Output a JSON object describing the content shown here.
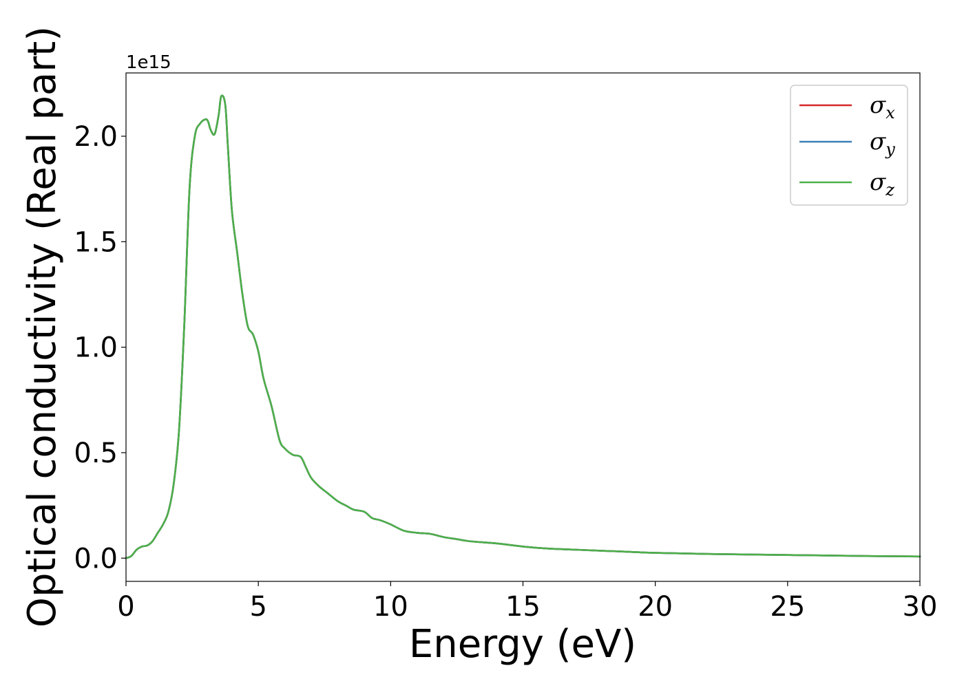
{
  "chart_data": {
    "type": "line",
    "xlabel": "Energy (eV)",
    "ylabel": "Optical conductivity (Real part)",
    "y_offset_text": "1e15",
    "y_scale": 1000000000000000.0,
    "xlim": [
      0,
      30
    ],
    "ylim": [
      -0.11,
      2.3
    ],
    "x_ticks": [
      0,
      5,
      10,
      15,
      20,
      25,
      30
    ],
    "x_tick_labels": [
      "0",
      "5",
      "10",
      "15",
      "20",
      "25",
      "30"
    ],
    "y_ticks": [
      0.0,
      0.5,
      1.0,
      1.5,
      2.0
    ],
    "y_tick_labels": [
      "0.0",
      "0.5",
      "1.0",
      "1.5",
      "2.0"
    ],
    "grid": false,
    "legend_position": "upper-right",
    "series": [
      {
        "name": "σx",
        "symbol": "σ",
        "subscript": "x",
        "color": "#d62728",
        "x": [
          0,
          0.2,
          0.4,
          0.6,
          0.8,
          1.0,
          1.2,
          1.4,
          1.6,
          1.8,
          2.0,
          2.2,
          2.4,
          2.6,
          2.8,
          3.0,
          3.1,
          3.2,
          3.35,
          3.5,
          3.6,
          3.75,
          3.85,
          4.0,
          4.2,
          4.4,
          4.6,
          4.8,
          5.0,
          5.2,
          5.5,
          5.8,
          6.0,
          6.3,
          6.6,
          6.8,
          7.0,
          7.3,
          7.6,
          8.0,
          8.3,
          8.6,
          9.0,
          9.3,
          9.6,
          10.0,
          10.5,
          11.0,
          11.5,
          12.0,
          12.5,
          13.0,
          14.0,
          15.0,
          16.0,
          17.0,
          18.0,
          19.0,
          20.0,
          22.0,
          25.0,
          28.0,
          30.0
        ],
        "y": [
          0.0,
          0.01,
          0.04,
          0.055,
          0.06,
          0.08,
          0.12,
          0.16,
          0.22,
          0.35,
          0.6,
          1.1,
          1.75,
          2.0,
          2.06,
          2.08,
          2.07,
          2.03,
          2.01,
          2.1,
          2.19,
          2.15,
          1.95,
          1.65,
          1.45,
          1.25,
          1.1,
          1.06,
          0.98,
          0.85,
          0.72,
          0.56,
          0.52,
          0.49,
          0.48,
          0.43,
          0.38,
          0.34,
          0.31,
          0.27,
          0.25,
          0.23,
          0.22,
          0.19,
          0.18,
          0.16,
          0.13,
          0.12,
          0.115,
          0.1,
          0.09,
          0.08,
          0.07,
          0.055,
          0.045,
          0.04,
          0.035,
          0.03,
          0.025,
          0.02,
          0.015,
          0.01,
          0.008
        ]
      },
      {
        "name": "σy",
        "symbol": "σ",
        "subscript": "y",
        "color": "#3a7fb8",
        "x": [
          0,
          0.2,
          0.4,
          0.6,
          0.8,
          1.0,
          1.2,
          1.4,
          1.6,
          1.8,
          2.0,
          2.2,
          2.4,
          2.6,
          2.8,
          3.0,
          3.1,
          3.2,
          3.35,
          3.5,
          3.6,
          3.75,
          3.85,
          4.0,
          4.2,
          4.4,
          4.6,
          4.8,
          5.0,
          5.2,
          5.5,
          5.8,
          6.0,
          6.3,
          6.6,
          6.8,
          7.0,
          7.3,
          7.6,
          8.0,
          8.3,
          8.6,
          9.0,
          9.3,
          9.6,
          10.0,
          10.5,
          11.0,
          11.5,
          12.0,
          12.5,
          13.0,
          14.0,
          15.0,
          16.0,
          17.0,
          18.0,
          19.0,
          20.0,
          22.0,
          25.0,
          28.0,
          30.0
        ],
        "y": [
          0.0,
          0.01,
          0.04,
          0.055,
          0.06,
          0.08,
          0.12,
          0.16,
          0.22,
          0.35,
          0.6,
          1.1,
          1.75,
          2.0,
          2.06,
          2.08,
          2.07,
          2.03,
          2.01,
          2.1,
          2.19,
          2.15,
          1.95,
          1.65,
          1.45,
          1.25,
          1.1,
          1.06,
          0.98,
          0.85,
          0.72,
          0.56,
          0.52,
          0.49,
          0.48,
          0.43,
          0.38,
          0.34,
          0.31,
          0.27,
          0.25,
          0.23,
          0.22,
          0.19,
          0.18,
          0.16,
          0.13,
          0.12,
          0.115,
          0.1,
          0.09,
          0.08,
          0.07,
          0.055,
          0.045,
          0.04,
          0.035,
          0.03,
          0.025,
          0.02,
          0.015,
          0.01,
          0.008
        ]
      },
      {
        "name": "σz",
        "symbol": "σ",
        "subscript": "z",
        "color": "#4daf4a",
        "x": [
          0,
          0.2,
          0.4,
          0.6,
          0.8,
          1.0,
          1.2,
          1.4,
          1.6,
          1.8,
          2.0,
          2.2,
          2.4,
          2.6,
          2.8,
          3.0,
          3.1,
          3.2,
          3.35,
          3.5,
          3.6,
          3.75,
          3.85,
          4.0,
          4.2,
          4.4,
          4.6,
          4.8,
          5.0,
          5.2,
          5.5,
          5.8,
          6.0,
          6.3,
          6.6,
          6.8,
          7.0,
          7.3,
          7.6,
          8.0,
          8.3,
          8.6,
          9.0,
          9.3,
          9.6,
          10.0,
          10.5,
          11.0,
          11.5,
          12.0,
          12.5,
          13.0,
          14.0,
          15.0,
          16.0,
          17.0,
          18.0,
          19.0,
          20.0,
          22.0,
          25.0,
          28.0,
          30.0
        ],
        "y": [
          0.0,
          0.01,
          0.04,
          0.055,
          0.06,
          0.08,
          0.12,
          0.16,
          0.22,
          0.35,
          0.6,
          1.1,
          1.75,
          2.0,
          2.06,
          2.08,
          2.07,
          2.03,
          2.01,
          2.1,
          2.19,
          2.15,
          1.95,
          1.65,
          1.45,
          1.25,
          1.1,
          1.06,
          0.98,
          0.85,
          0.72,
          0.56,
          0.52,
          0.49,
          0.48,
          0.43,
          0.38,
          0.34,
          0.31,
          0.27,
          0.25,
          0.23,
          0.22,
          0.19,
          0.18,
          0.16,
          0.13,
          0.12,
          0.115,
          0.1,
          0.09,
          0.08,
          0.07,
          0.055,
          0.045,
          0.04,
          0.035,
          0.03,
          0.025,
          0.02,
          0.015,
          0.01,
          0.008
        ]
      }
    ]
  }
}
